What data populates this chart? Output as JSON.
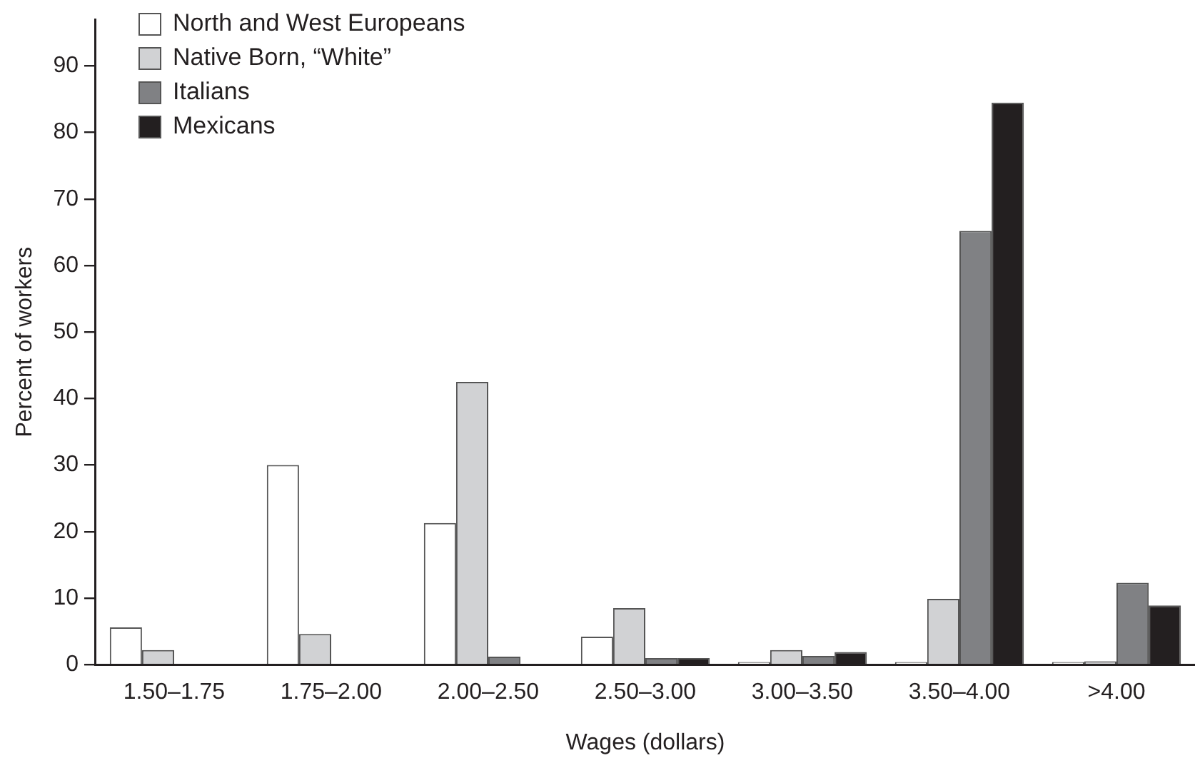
{
  "chart_data": {
    "type": "bar",
    "xlabel": "Wages (dollars)",
    "ylabel": "Percent of workers",
    "categories": [
      "1.50–1.75",
      "1.75–2.00",
      "2.00–2.50",
      "2.50–3.00",
      "3.00–3.50",
      "3.50–4.00",
      ">4.00"
    ],
    "series": [
      {
        "name": "North and West Europeans",
        "color": "#ffffff",
        "values": [
          5.6,
          30,
          21.3,
          4.2,
          0.4,
          0.4,
          0.4
        ]
      },
      {
        "name": "Native Born, “White”",
        "color": "#d1d2d4",
        "values": [
          2.2,
          4.6,
          42.5,
          8.5,
          2.2,
          9.9,
          0.5
        ]
      },
      {
        "name": "Italians",
        "color": "#808184",
        "values": [
          null,
          null,
          1.2,
          1.0,
          1.3,
          65.2,
          12.3
        ]
      },
      {
        "name": "Mexicans",
        "color": "#231f20",
        "values": [
          null,
          null,
          null,
          1.0,
          1.9,
          84.5,
          8.9
        ]
      }
    ],
    "ylim": [
      0,
      97
    ],
    "yticks": [
      0,
      10,
      20,
      30,
      40,
      50,
      60,
      70,
      80,
      90
    ],
    "grid": false,
    "legend": "top left"
  }
}
